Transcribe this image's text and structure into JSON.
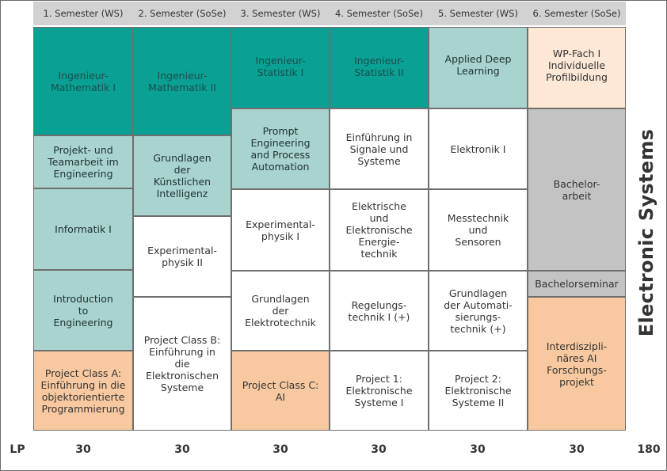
{
  "semesters": [
    "1. Semester (WS)",
    "2. Semester (SoSe)",
    "3. Semester (WS)",
    "4. Semester (SoSe)",
    "5. Semester (WS)",
    "6. Semester (SoSe)"
  ],
  "modules": {
    "s1": [
      "Ingenieur-\nMathematik I",
      "Projekt- und\nTeamarbeit im\nEngineering",
      "Informatik I",
      "Introduction\nto\nEngineering",
      "Project Class A:\nEinführung in die\nobjektorientierte\nProgrammierung"
    ],
    "s2": [
      "Ingenieur-\nMathematik II",
      "Grundlagen\nder\nKünstlichen\nIntelligenz",
      "Experimental-\nphysik II",
      "Project Class B:\nEinführung in\ndie\nElektronischen\nSysteme"
    ],
    "s3": [
      "Ingenieur-\nStatistik I",
      "Prompt\nEngineering\nand Process\nAutomation",
      "Experimental-\nphysik I",
      "Grundlagen\nder\nElektrotechnik",
      "Project Class C:\nAI"
    ],
    "s4": [
      "Ingenieur-\nStatistik II",
      "Einführung in\nSignale und\nSysteme",
      "Elektrische\nund\nElektronische\nEnergie-\ntechnik",
      "Regelungs-\ntechnik I (+)",
      "Project 1:\nElektronische\nSysteme I"
    ],
    "s5": [
      "Applied Deep\nLearning",
      "Elektronik I",
      "Messtechnik\nund\nSensoren",
      "Grundlagen\nder Automati-\nsierungs-\ntechnik (+)",
      "Project 2:\nElektronische\nSysteme II"
    ],
    "s6": [
      "WP-Fach I\nIndividuelle\nProfilbildung",
      "Bachelor-\narbeit",
      "Bachelorseminar",
      "Interdiszipli-\nnäres AI\nForschungs-\nprojekt"
    ]
  },
  "footer": {
    "label": "LP",
    "values": [
      "30",
      "30",
      "30",
      "30",
      "30",
      "30"
    ],
    "total": "180"
  },
  "side_title": "Electronic Systems",
  "colors": {
    "dark_teal": "#0aa094",
    "light_teal": "#a8d3ce",
    "orange": "#f8c9a0",
    "peach": "#fde8d6",
    "gray": "#c3c3c3",
    "header_gray": "#d2d2d2"
  }
}
